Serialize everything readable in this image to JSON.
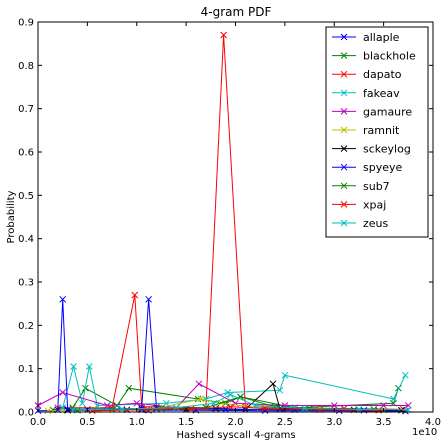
{
  "chart_data": {
    "type": "line",
    "title": "4-gram PDF",
    "xlabel": "Hashed syscall 4-grams",
    "ylabel": "Probability",
    "x_offset_label": "1e10",
    "xlim": [
      0.0,
      4.0
    ],
    "ylim": [
      0.0,
      0.9
    ],
    "xticks": [
      "0.0",
      "0.5",
      "1.0",
      "1.5",
      "2.0",
      "2.5",
      "3.0",
      "3.5",
      "4.0"
    ],
    "yticks": [
      "0.0",
      "0.1",
      "0.2",
      "0.3",
      "0.4",
      "0.5",
      "0.6",
      "0.7",
      "0.8",
      "0.9"
    ],
    "grid": false,
    "legend_position": "top-right",
    "series": [
      {
        "name": "allaple",
        "color": "#0000ff",
        "x": [
          0.0,
          0.3,
          0.5,
          1.05,
          1.12,
          1.6,
          2.3,
          3.05,
          3.72
        ],
        "y": [
          0.003,
          0.004,
          0.006,
          0.005,
          0.004,
          0.004,
          0.003,
          0.003,
          0.002
        ]
      },
      {
        "name": "blackhole",
        "color": "#008000",
        "x": [
          0.15,
          0.35,
          0.48,
          0.8,
          0.92,
          1.62,
          1.9,
          2.05,
          2.6,
          3.6,
          3.65
        ],
        "y": [
          0.005,
          0.01,
          0.055,
          0.015,
          0.055,
          0.03,
          0.02,
          0.035,
          0.01,
          0.02,
          0.055
        ]
      },
      {
        "name": "dapato",
        "color": "#ff0000",
        "x": [
          0.2,
          0.75,
          0.98,
          1.05,
          1.2,
          1.7,
          1.88,
          2.1,
          2.5,
          3.1,
          3.7
        ],
        "y": [
          0.01,
          0.01,
          0.27,
          0.012,
          0.012,
          0.01,
          0.87,
          0.012,
          0.01,
          0.008,
          0.006
        ]
      },
      {
        "name": "fakeav",
        "color": "#00bfbf",
        "x": [
          0.25,
          0.36,
          0.45,
          0.52,
          0.6,
          1.3,
          1.7,
          1.92,
          2.45,
          2.5,
          3.6,
          3.72
        ],
        "y": [
          0.01,
          0.105,
          0.02,
          0.105,
          0.015,
          0.02,
          0.03,
          0.045,
          0.05,
          0.085,
          0.03,
          0.085
        ]
      },
      {
        "name": "gamaure",
        "color": "#bf00bf",
        "x": [
          0.0,
          0.25,
          0.7,
          1.0,
          1.4,
          1.63,
          2.0,
          2.5,
          3.0,
          3.5,
          3.75
        ],
        "y": [
          0.015,
          0.045,
          0.015,
          0.02,
          0.01,
          0.065,
          0.02,
          0.015,
          0.015,
          0.015,
          0.015
        ]
      },
      {
        "name": "ramnit",
        "color": "#bfbf00",
        "x": [
          0.1,
          0.6,
          1.15,
          1.65,
          1.85,
          2.25,
          2.85,
          3.5
        ],
        "y": [
          0.003,
          0.005,
          0.006,
          0.03,
          0.02,
          0.01,
          0.006,
          0.004
        ]
      },
      {
        "name": "sckeylog",
        "color": "#000000",
        "x": [
          0.3,
          0.9,
          1.5,
          1.8,
          2.1,
          2.38,
          2.45,
          3.2,
          3.68
        ],
        "y": [
          0.004,
          0.005,
          0.006,
          0.008,
          0.006,
          0.065,
          0.008,
          0.005,
          0.004
        ]
      },
      {
        "name": "spyeye",
        "color": "#0000ff",
        "x": [
          0.2,
          0.25,
          0.3,
          1.05,
          1.12,
          1.2,
          1.9,
          2.6,
          3.3
        ],
        "y": [
          0.005,
          0.26,
          0.006,
          0.008,
          0.26,
          0.008,
          0.006,
          0.005,
          0.004
        ]
      },
      {
        "name": "sub7",
        "color": "#008000",
        "x": [
          0.4,
          0.75,
          1.25,
          1.7,
          2.05,
          2.4,
          2.75,
          3.4
        ],
        "y": [
          0.004,
          0.006,
          0.008,
          0.01,
          0.035,
          0.012,
          0.008,
          0.006
        ]
      },
      {
        "name": "xpaj",
        "color": "#ff0000",
        "x": [
          0.55,
          1.1,
          1.55,
          1.95,
          2.3,
          2.85,
          3.45
        ],
        "y": [
          0.003,
          0.005,
          0.007,
          0.012,
          0.008,
          0.005,
          0.004
        ]
      },
      {
        "name": "zeus",
        "color": "#00bfbf",
        "x": [
          0.35,
          0.85,
          1.4,
          1.78,
          1.95,
          2.2,
          2.7,
          3.25,
          3.75
        ],
        "y": [
          0.005,
          0.007,
          0.01,
          0.02,
          0.04,
          0.015,
          0.008,
          0.006,
          0.005
        ]
      }
    ]
  }
}
